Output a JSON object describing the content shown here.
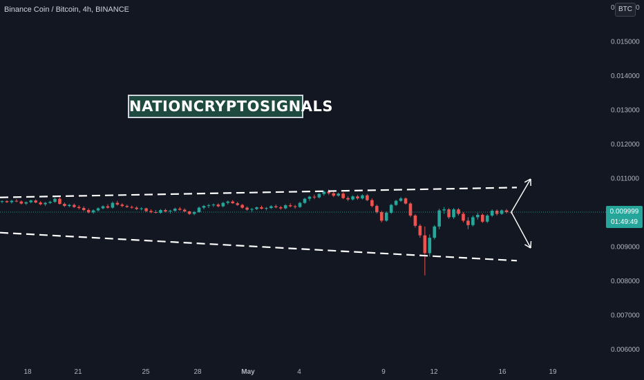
{
  "header": {
    "title": "Binance Coin / Bitcoin, 4h, BINANCE",
    "currency_button": "BTC"
  },
  "watermark": {
    "text": "NATIONCRYPTOSIGNALS"
  },
  "price_tag": {
    "price": "0.009999",
    "countdown": "01:49:49"
  },
  "colors": {
    "background": "#131722",
    "up": "#26a69a",
    "down": "#ef5350",
    "text": "#b2b5be",
    "accent": "#26a69a"
  },
  "chart_data": {
    "type": "candlestick",
    "title": "Binance Coin / Bitcoin, 4h, BINANCE",
    "ylim": [
      0.0055,
      0.0164
    ],
    "y_ticks": [
      "0.016000",
      "0.015000",
      "0.014000",
      "0.013000",
      "0.012000",
      "0.011000",
      "0.009000",
      "0.008000",
      "0.007000",
      "0.006000"
    ],
    "x_ticks": [
      "18",
      "21",
      "25",
      "28",
      "May",
      "4",
      "9",
      "12",
      "16",
      "19"
    ],
    "last_price": 0.009999,
    "trendlines": [
      {
        "name": "upper-channel",
        "style": "dashed",
        "from": 0.01043,
        "to": 0.01072
      },
      {
        "name": "lower-channel",
        "style": "dashed",
        "from": 0.0094,
        "to": 0.00858
      }
    ],
    "projection_arrows": [
      {
        "direction": "up",
        "target": 0.01097
      },
      {
        "direction": "down",
        "target": 0.00895
      }
    ],
    "series": [
      {
        "values": [
          [
            0.0103,
            0.01034,
            0.01026,
            0.01032
          ],
          [
            0.01032,
            0.01035,
            0.01027,
            0.01029
          ],
          [
            0.01029,
            0.01036,
            0.01025,
            0.01033
          ],
          [
            0.01033,
            0.01038,
            0.01029,
            0.01031
          ],
          [
            0.01031,
            0.01034,
            0.01022,
            0.01025
          ],
          [
            0.01025,
            0.01031,
            0.01021,
            0.01029
          ],
          [
            0.01029,
            0.01036,
            0.01026,
            0.01034
          ],
          [
            0.01034,
            0.01037,
            0.01026,
            0.01028
          ],
          [
            0.01028,
            0.01032,
            0.0102,
            0.01023
          ],
          [
            0.01023,
            0.0103,
            0.01018,
            0.01027
          ],
          [
            0.01027,
            0.01033,
            0.01024,
            0.0103
          ],
          [
            0.0103,
            0.01042,
            0.01027,
            0.01039
          ],
          [
            0.01039,
            0.01043,
            0.01022,
            0.01024
          ],
          [
            0.01024,
            0.01028,
            0.01015,
            0.01018
          ],
          [
            0.01018,
            0.01024,
            0.01014,
            0.01021
          ],
          [
            0.01021,
            0.01025,
            0.01012,
            0.01015
          ],
          [
            0.01015,
            0.0102,
            0.01008,
            0.01012
          ],
          [
            0.01012,
            0.01017,
            0.01003,
            0.01006
          ],
          [
            0.01006,
            0.01011,
            0.00996,
            0.00999
          ],
          [
            0.00999,
            0.01008,
            0.00995,
            0.01005
          ],
          [
            0.01005,
            0.01014,
            0.01002,
            0.01011
          ],
          [
            0.01011,
            0.0102,
            0.01008,
            0.01017
          ],
          [
            0.01017,
            0.01023,
            0.0101,
            0.01013
          ],
          [
            0.01013,
            0.01031,
            0.0101,
            0.01027
          ],
          [
            0.01027,
            0.01033,
            0.01019,
            0.01022
          ],
          [
            0.01022,
            0.01026,
            0.01014,
            0.01018
          ],
          [
            0.01018,
            0.01022,
            0.01012,
            0.01015
          ],
          [
            0.01015,
            0.01019,
            0.0101,
            0.01013
          ],
          [
            0.01013,
            0.01017,
            0.01006,
            0.01009
          ],
          [
            0.01009,
            0.01014,
            0.01005,
            0.01011
          ],
          [
            0.01011,
            0.01013,
            0.01,
            0.01003
          ],
          [
            0.01003,
            0.01008,
            0.00997,
            0.01
          ],
          [
            0.01,
            0.01006,
            0.00996,
            0.00998
          ],
          [
            0.00998,
            0.01009,
            0.00995,
            0.01006
          ],
          [
            0.01006,
            0.0101,
            0.00999,
            0.01002
          ],
          [
            0.01002,
            0.01007,
            0.00996,
            0.01004
          ],
          [
            0.01004,
            0.01013,
            0.01001,
            0.0101
          ],
          [
            0.0101,
            0.01015,
            0.01004,
            0.01007
          ],
          [
            0.01007,
            0.01011,
            0.00999,
            0.01002
          ],
          [
            0.01002,
            0.01004,
            0.00992,
            0.00995
          ],
          [
            0.00995,
            0.01003,
            0.00991,
            0.01
          ],
          [
            0.01,
            0.01016,
            0.00998,
            0.01013
          ],
          [
            0.01013,
            0.01021,
            0.01008,
            0.01018
          ],
          [
            0.01018,
            0.01024,
            0.01012,
            0.0102
          ],
          [
            0.0102,
            0.01025,
            0.01015,
            0.01022
          ],
          [
            0.01022,
            0.01026,
            0.01014,
            0.01017
          ],
          [
            0.01017,
            0.0103,
            0.01014,
            0.01027
          ],
          [
            0.01027,
            0.01034,
            0.01022,
            0.01031
          ],
          [
            0.01031,
            0.01035,
            0.01024,
            0.01026
          ],
          [
            0.01026,
            0.0103,
            0.01018,
            0.01021
          ],
          [
            0.01021,
            0.01024,
            0.0101,
            0.01013
          ],
          [
            0.01013,
            0.01017,
            0.01004,
            0.01007
          ],
          [
            0.01007,
            0.01012,
            0.01001,
            0.01009
          ],
          [
            0.01009,
            0.01016,
            0.01006,
            0.01014
          ],
          [
            0.01014,
            0.01019,
            0.01008,
            0.0101
          ],
          [
            0.0101,
            0.01015,
            0.01005,
            0.01012
          ],
          [
            0.01012,
            0.0102,
            0.01009,
            0.01017
          ],
          [
            0.01017,
            0.01022,
            0.01011,
            0.01014
          ],
          [
            0.01014,
            0.01018,
            0.01007,
            0.01011
          ],
          [
            0.01011,
            0.01023,
            0.01008,
            0.0102
          ],
          [
            0.0102,
            0.01026,
            0.01014,
            0.01017
          ],
          [
            0.01017,
            0.01021,
            0.0101,
            0.01015
          ],
          [
            0.01015,
            0.0103,
            0.01012,
            0.01027
          ],
          [
            0.01027,
            0.01042,
            0.01024,
            0.01039
          ],
          [
            0.01039,
            0.01048,
            0.01033,
            0.01045
          ],
          [
            0.01045,
            0.01051,
            0.01038,
            0.01043
          ],
          [
            0.01043,
            0.01056,
            0.0104,
            0.01053
          ],
          [
            0.01053,
            0.01063,
            0.01048,
            0.0106
          ],
          [
            0.0106,
            0.01066,
            0.0105,
            0.01055
          ],
          [
            0.01055,
            0.01059,
            0.01044,
            0.01048
          ],
          [
            0.01048,
            0.01057,
            0.01045,
            0.01054
          ],
          [
            0.01054,
            0.01058,
            0.01038,
            0.01041
          ],
          [
            0.01041,
            0.01046,
            0.01032,
            0.01037
          ],
          [
            0.01037,
            0.01049,
            0.01034,
            0.01046
          ],
          [
            0.01046,
            0.0105,
            0.01036,
            0.0104
          ],
          [
            0.0104,
            0.01052,
            0.01037,
            0.01049
          ],
          [
            0.01049,
            0.01053,
            0.01032,
            0.01035
          ],
          [
            0.01035,
            0.0104,
            0.01014,
            0.01018
          ],
          [
            0.01018,
            0.01022,
            0.00996,
            0.01
          ],
          [
            0.01,
            0.01004,
            0.0097,
            0.00975
          ],
          [
            0.00975,
            0.01002,
            0.00972,
            0.00998
          ],
          [
            0.00998,
            0.01024,
            0.00995,
            0.01021
          ],
          [
            0.01021,
            0.01036,
            0.01018,
            0.01033
          ],
          [
            0.01033,
            0.01044,
            0.0103,
            0.0104
          ],
          [
            0.0104,
            0.01043,
            0.01022,
            0.01025
          ],
          [
            0.01025,
            0.01029,
            0.00985,
            0.0099
          ],
          [
            0.0099,
            0.00994,
            0.00955,
            0.0096
          ],
          [
            0.0096,
            0.00965,
            0.00925,
            0.00932
          ],
          [
            0.00932,
            0.00958,
            0.00815,
            0.0088
          ],
          [
            0.0088,
            0.00935,
            0.0087,
            0.00925
          ],
          [
            0.00925,
            0.00962,
            0.0092,
            0.00958
          ],
          [
            0.00958,
            0.0101,
            0.0095,
            0.01005
          ],
          [
            0.01005,
            0.01015,
            0.00995,
            0.01008
          ],
          [
            0.01008,
            0.01012,
            0.0098,
            0.00985
          ],
          [
            0.00985,
            0.01012,
            0.0098,
            0.01008
          ],
          [
            0.01008,
            0.01012,
            0.0099,
            0.00995
          ],
          [
            0.00995,
            0.01,
            0.0097,
            0.00975
          ],
          [
            0.00975,
            0.00985,
            0.0095,
            0.00962
          ],
          [
            0.00962,
            0.0099,
            0.00958,
            0.00985
          ],
          [
            0.00985,
            0.00998,
            0.00978,
            0.00992
          ],
          [
            0.00992,
            0.00996,
            0.00968,
            0.00972
          ],
          [
            0.00972,
            0.00994,
            0.00968,
            0.0099
          ],
          [
            0.0099,
            0.01008,
            0.00986,
            0.01004
          ],
          [
            0.01004,
            0.01008,
            0.0099,
            0.00995
          ],
          [
            0.00995,
            0.01008,
            0.00992,
            0.01005
          ],
          [
            0.01005,
            0.01009,
            0.00996,
            0.01
          ],
          [
            0.01,
            0.01004,
            0.00994,
            0.00999
          ]
        ]
      }
    ]
  }
}
